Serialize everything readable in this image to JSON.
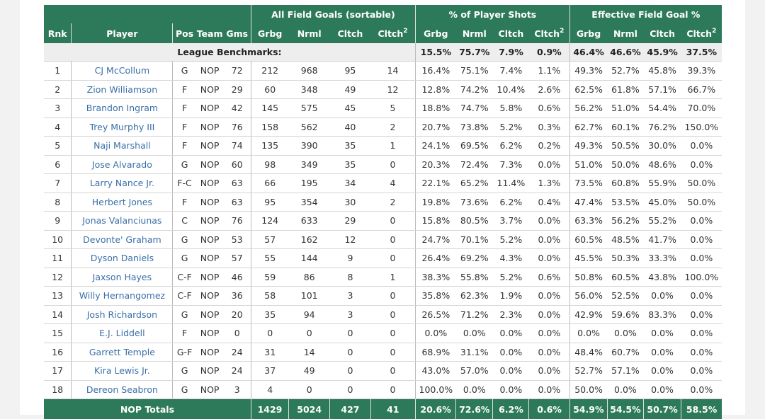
{
  "groups": {
    "fg": "All Field Goals (sortable)",
    "pct": "% of Player Shots",
    "efg": "Effective Field Goal %"
  },
  "columns": {
    "rnk": "Rnk",
    "player": "Player",
    "pos": "Pos",
    "team": "Team",
    "gms": "Gms",
    "fg": [
      "Grbg",
      "Nrml",
      "Cltch",
      "Cltch"
    ],
    "pct": [
      "Grbg",
      "Nrml",
      "Cltch",
      "Cltch"
    ],
    "efg": [
      "Grbg",
      "Nrml",
      "Cltch",
      "Cltch"
    ],
    "sup": "2"
  },
  "benchmarks": {
    "label": "League Benchmarks:",
    "pct": [
      "15.5%",
      "75.7%",
      "7.9%",
      "0.9%"
    ],
    "efg": [
      "46.4%",
      "46.6%",
      "45.9%",
      "37.5%"
    ]
  },
  "players": [
    {
      "rnk": "1",
      "name": "CJ McCollum",
      "pos": "G",
      "team": "NOP",
      "gms": "72",
      "fg": [
        "212",
        "968",
        "95",
        "14"
      ],
      "pct": [
        "16.4%",
        "75.1%",
        "7.4%",
        "1.1%"
      ],
      "efg": [
        "49.3%",
        "52.7%",
        "45.8%",
        "39.3%"
      ]
    },
    {
      "rnk": "2",
      "name": "Zion Williamson",
      "pos": "F",
      "team": "NOP",
      "gms": "29",
      "fg": [
        "60",
        "348",
        "49",
        "12"
      ],
      "pct": [
        "12.8%",
        "74.2%",
        "10.4%",
        "2.6%"
      ],
      "efg": [
        "62.5%",
        "61.8%",
        "57.1%",
        "66.7%"
      ]
    },
    {
      "rnk": "3",
      "name": "Brandon Ingram",
      "pos": "F",
      "team": "NOP",
      "gms": "42",
      "fg": [
        "145",
        "575",
        "45",
        "5"
      ],
      "pct": [
        "18.8%",
        "74.7%",
        "5.8%",
        "0.6%"
      ],
      "efg": [
        "56.2%",
        "51.0%",
        "54.4%",
        "70.0%"
      ]
    },
    {
      "rnk": "4",
      "name": "Trey Murphy III",
      "pos": "F",
      "team": "NOP",
      "gms": "76",
      "fg": [
        "158",
        "562",
        "40",
        "2"
      ],
      "pct": [
        "20.7%",
        "73.8%",
        "5.2%",
        "0.3%"
      ],
      "efg": [
        "62.7%",
        "60.1%",
        "76.2%",
        "150.0%"
      ]
    },
    {
      "rnk": "5",
      "name": "Naji Marshall",
      "pos": "F",
      "team": "NOP",
      "gms": "74",
      "fg": [
        "135",
        "390",
        "35",
        "1"
      ],
      "pct": [
        "24.1%",
        "69.5%",
        "6.2%",
        "0.2%"
      ],
      "efg": [
        "49.3%",
        "50.5%",
        "30.0%",
        "0.0%"
      ]
    },
    {
      "rnk": "6",
      "name": "Jose Alvarado",
      "pos": "G",
      "team": "NOP",
      "gms": "60",
      "fg": [
        "98",
        "349",
        "35",
        "0"
      ],
      "pct": [
        "20.3%",
        "72.4%",
        "7.3%",
        "0.0%"
      ],
      "efg": [
        "51.0%",
        "50.0%",
        "48.6%",
        "0.0%"
      ]
    },
    {
      "rnk": "7",
      "name": "Larry Nance Jr.",
      "pos": "F-C",
      "team": "NOP",
      "gms": "63",
      "fg": [
        "66",
        "195",
        "34",
        "4"
      ],
      "pct": [
        "22.1%",
        "65.2%",
        "11.4%",
        "1.3%"
      ],
      "efg": [
        "73.5%",
        "60.8%",
        "55.9%",
        "50.0%"
      ]
    },
    {
      "rnk": "8",
      "name": "Herbert Jones",
      "pos": "F",
      "team": "NOP",
      "gms": "63",
      "fg": [
        "95",
        "354",
        "30",
        "2"
      ],
      "pct": [
        "19.8%",
        "73.6%",
        "6.2%",
        "0.4%"
      ],
      "efg": [
        "47.4%",
        "53.5%",
        "45.0%",
        "50.0%"
      ]
    },
    {
      "rnk": "9",
      "name": "Jonas Valanciunas",
      "pos": "C",
      "team": "NOP",
      "gms": "76",
      "fg": [
        "124",
        "633",
        "29",
        "0"
      ],
      "pct": [
        "15.8%",
        "80.5%",
        "3.7%",
        "0.0%"
      ],
      "efg": [
        "63.3%",
        "56.2%",
        "55.2%",
        "0.0%"
      ]
    },
    {
      "rnk": "10",
      "name": "Devonte' Graham",
      "pos": "G",
      "team": "NOP",
      "gms": "53",
      "fg": [
        "57",
        "162",
        "12",
        "0"
      ],
      "pct": [
        "24.7%",
        "70.1%",
        "5.2%",
        "0.0%"
      ],
      "efg": [
        "60.5%",
        "48.5%",
        "41.7%",
        "0.0%"
      ]
    },
    {
      "rnk": "11",
      "name": "Dyson Daniels",
      "pos": "G",
      "team": "NOP",
      "gms": "57",
      "fg": [
        "55",
        "144",
        "9",
        "0"
      ],
      "pct": [
        "26.4%",
        "69.2%",
        "4.3%",
        "0.0%"
      ],
      "efg": [
        "45.5%",
        "50.3%",
        "33.3%",
        "0.0%"
      ]
    },
    {
      "rnk": "12",
      "name": "Jaxson Hayes",
      "pos": "C-F",
      "team": "NOP",
      "gms": "46",
      "fg": [
        "59",
        "86",
        "8",
        "1"
      ],
      "pct": [
        "38.3%",
        "55.8%",
        "5.2%",
        "0.6%"
      ],
      "efg": [
        "50.8%",
        "60.5%",
        "43.8%",
        "100.0%"
      ]
    },
    {
      "rnk": "13",
      "name": "Willy Hernangomez",
      "pos": "C-F",
      "team": "NOP",
      "gms": "36",
      "fg": [
        "58",
        "101",
        "3",
        "0"
      ],
      "pct": [
        "35.8%",
        "62.3%",
        "1.9%",
        "0.0%"
      ],
      "efg": [
        "56.0%",
        "52.5%",
        "0.0%",
        "0.0%"
      ]
    },
    {
      "rnk": "14",
      "name": "Josh Richardson",
      "pos": "G",
      "team": "NOP",
      "gms": "20",
      "fg": [
        "35",
        "94",
        "3",
        "0"
      ],
      "pct": [
        "26.5%",
        "71.2%",
        "2.3%",
        "0.0%"
      ],
      "efg": [
        "42.9%",
        "59.6%",
        "83.3%",
        "0.0%"
      ]
    },
    {
      "rnk": "15",
      "name": "E.J. Liddell",
      "pos": "F",
      "team": "NOP",
      "gms": "0",
      "fg": [
        "0",
        "0",
        "0",
        "0"
      ],
      "pct": [
        "0.0%",
        "0.0%",
        "0.0%",
        "0.0%"
      ],
      "efg": [
        "0.0%",
        "0.0%",
        "0.0%",
        "0.0%"
      ]
    },
    {
      "rnk": "16",
      "name": "Garrett Temple",
      "pos": "G-F",
      "team": "NOP",
      "gms": "24",
      "fg": [
        "31",
        "14",
        "0",
        "0"
      ],
      "pct": [
        "68.9%",
        "31.1%",
        "0.0%",
        "0.0%"
      ],
      "efg": [
        "48.4%",
        "60.7%",
        "0.0%",
        "0.0%"
      ]
    },
    {
      "rnk": "17",
      "name": "Kira Lewis Jr.",
      "pos": "G",
      "team": "NOP",
      "gms": "24",
      "fg": [
        "37",
        "49",
        "0",
        "0"
      ],
      "pct": [
        "43.0%",
        "57.0%",
        "0.0%",
        "0.0%"
      ],
      "efg": [
        "52.7%",
        "57.1%",
        "0.0%",
        "0.0%"
      ]
    },
    {
      "rnk": "18",
      "name": "Dereon Seabron",
      "pos": "G",
      "team": "NOP",
      "gms": "3",
      "fg": [
        "4",
        "0",
        "0",
        "0"
      ],
      "pct": [
        "100.0%",
        "0.0%",
        "0.0%",
        "0.0%"
      ],
      "efg": [
        "50.0%",
        "0.0%",
        "0.0%",
        "0.0%"
      ]
    }
  ],
  "totals": {
    "label": "NOP Totals",
    "fg": [
      "1429",
      "5024",
      "427",
      "41"
    ],
    "pct": [
      "20.6%",
      "72.6%",
      "6.2%",
      "0.6%"
    ],
    "efg": [
      "54.9%",
      "54.5%",
      "50.7%",
      "58.5%"
    ]
  },
  "colors": {
    "header_bg": "#2d7a5a",
    "link": "#3a6fa8",
    "bench_bg": "#eeeeee"
  }
}
